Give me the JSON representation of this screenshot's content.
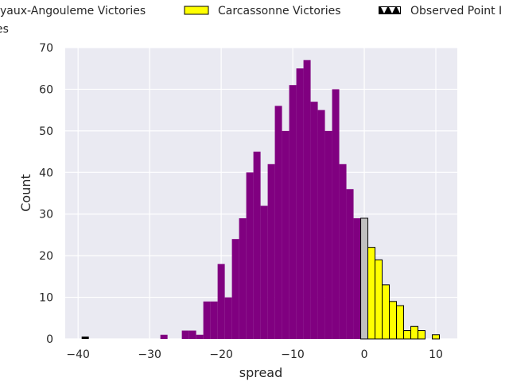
{
  "chart_data": {
    "type": "bar",
    "xlabel": "spread",
    "ylabel": "Count",
    "xlim": [
      -41.8,
      13
    ],
    "ylim": [
      0,
      70
    ],
    "xticks": [
      -40,
      -30,
      -20,
      -10,
      0,
      10
    ],
    "yticks": [
      0,
      10,
      20,
      30,
      40,
      50,
      60,
      70
    ],
    "grid": true,
    "background": "#eaeaf2",
    "legend": {
      "placement": "top",
      "entries": [
        {
          "label": "yaux-Angouleme Victories",
          "color": "#800080"
        },
        {
          "label": "Carcassonne Victories",
          "color": "#ffff00"
        },
        {
          "label": "Observed Point I",
          "color": "#000000",
          "hatch": true
        },
        {
          "label": "es",
          "color": "#c0c0c0"
        }
      ]
    },
    "series": [
      {
        "color": "#800080",
        "bins": [
          -28,
          -25,
          -24,
          -23,
          -22,
          -21,
          -20,
          -19,
          -18,
          -17,
          -16,
          -15,
          -14,
          -13,
          -12,
          -11,
          -10,
          -9,
          -8,
          -7,
          -6,
          -5,
          -4,
          -3,
          -2,
          -1
        ],
        "values": [
          1,
          2,
          2,
          1,
          9,
          9,
          18,
          10,
          24,
          29,
          40,
          45,
          32,
          42,
          56,
          50,
          61,
          65,
          67,
          57,
          55,
          50,
          60,
          42,
          36,
          29
        ]
      },
      {
        "color": "#c0c0c0",
        "bins": [
          0
        ],
        "values": [
          29
        ]
      },
      {
        "color": "#ffff00",
        "bins": [
          1,
          2,
          3,
          4,
          5,
          6,
          7,
          8,
          10
        ],
        "values": [
          22,
          19,
          13,
          9,
          8,
          2,
          3,
          2,
          1
        ]
      }
    ],
    "observed_point": {
      "x": -39,
      "value": 0.3
    }
  }
}
